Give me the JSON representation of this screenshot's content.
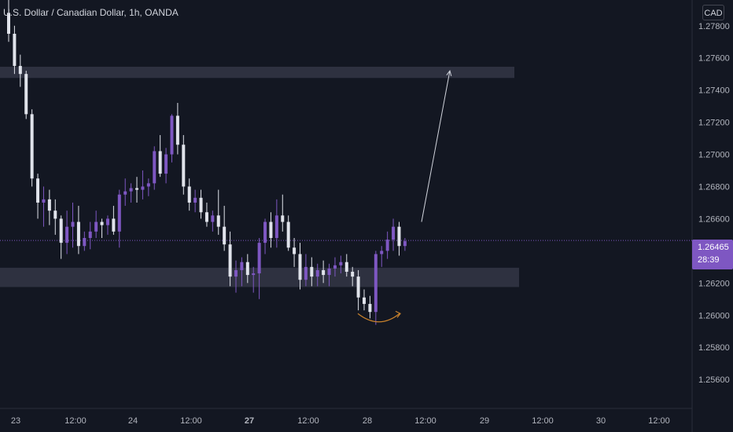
{
  "header": {
    "symbol_title": "U.S. Dollar / Canadian Dollar, 1h, OANDA",
    "currency": "CAD"
  },
  "last_price": {
    "value": "1.26465",
    "countdown": "28:39"
  },
  "colors": {
    "background": "#131722",
    "up": "#7e57c2",
    "down": "#e0e3eb",
    "zone": "#2e3140",
    "curve": "#c9822c",
    "arrow": "#d1d4dc"
  },
  "chart_data": {
    "type": "candlestick",
    "y_ticks": [
      "1.27800",
      "1.27600",
      "1.27400",
      "1.27200",
      "1.27000",
      "1.26800",
      "1.26600",
      "1.26200",
      "1.26000",
      "1.25800",
      "1.25600"
    ],
    "ylim": [
      1.2542,
      1.2796
    ],
    "x_ticks": [
      "23",
      "12:00",
      "24",
      "12:00",
      "27",
      "12:00",
      "28",
      "12:00",
      "29",
      "12:00",
      "30",
      "12:00"
    ],
    "zones": [
      {
        "from": 1.27545,
        "to": 1.27475
      },
      {
        "from": 1.26295,
        "to": 1.26175
      }
    ],
    "projection_arrow": {
      "from_price": 1.2658,
      "to_price": 1.2752
    },
    "candles": [
      [
        1.2788,
        1.28,
        1.277,
        1.2775
      ],
      [
        1.2775,
        1.278,
        1.275,
        1.2755
      ],
      [
        1.2755,
        1.2762,
        1.2742,
        1.275
      ],
      [
        1.275,
        1.2752,
        1.2722,
        1.2725
      ],
      [
        1.2725,
        1.2728,
        1.268,
        1.2685
      ],
      [
        1.2685,
        1.2688,
        1.266,
        1.267
      ],
      [
        1.267,
        1.268,
        1.2655,
        1.2672
      ],
      [
        1.2672,
        1.2678,
        1.2656,
        1.2665
      ],
      [
        1.2665,
        1.2672,
        1.265,
        1.266
      ],
      [
        1.266,
        1.2662,
        1.2635,
        1.2645
      ],
      [
        1.2645,
        1.2665,
        1.2638,
        1.2655
      ],
      [
        1.2655,
        1.267,
        1.2642,
        1.2658
      ],
      [
        1.2658,
        1.2668,
        1.2638,
        1.2643
      ],
      [
        1.2643,
        1.2652,
        1.264,
        1.2648
      ],
      [
        1.2648,
        1.2658,
        1.2641,
        1.2652
      ],
      [
        1.2652,
        1.2665,
        1.2648,
        1.2658
      ],
      [
        1.2658,
        1.266,
        1.2648,
        1.2656
      ],
      [
        1.2656,
        1.2662,
        1.265,
        1.266
      ],
      [
        1.266,
        1.2668,
        1.265,
        1.2652
      ],
      [
        1.2652,
        1.2678,
        1.2642,
        1.2675
      ],
      [
        1.2675,
        1.2685,
        1.2668,
        1.2677
      ],
      [
        1.2677,
        1.2682,
        1.267,
        1.2679
      ],
      [
        1.2679,
        1.2686,
        1.267,
        1.2678
      ],
      [
        1.2678,
        1.269,
        1.2672,
        1.268
      ],
      [
        1.268,
        1.2685,
        1.2674,
        1.2682
      ],
      [
        1.2682,
        1.2705,
        1.2678,
        1.2702
      ],
      [
        1.2702,
        1.2712,
        1.2686,
        1.2688
      ],
      [
        1.2688,
        1.2704,
        1.2682,
        1.27
      ],
      [
        1.27,
        1.2725,
        1.2695,
        1.2724
      ],
      [
        1.2724,
        1.2732,
        1.27,
        1.2706
      ],
      [
        1.2706,
        1.2712,
        1.2675,
        1.268
      ],
      [
        1.268,
        1.2685,
        1.2665,
        1.267
      ],
      [
        1.267,
        1.2678,
        1.2664,
        1.2673
      ],
      [
        1.2673,
        1.2678,
        1.266,
        1.2664
      ],
      [
        1.2664,
        1.267,
        1.2655,
        1.2658
      ],
      [
        1.2658,
        1.2665,
        1.2652,
        1.2662
      ],
      [
        1.2662,
        1.2678,
        1.265,
        1.2655
      ],
      [
        1.2655,
        1.2668,
        1.264,
        1.2644
      ],
      [
        1.2644,
        1.2652,
        1.2618,
        1.2624
      ],
      [
        1.2624,
        1.2634,
        1.2614,
        1.2628
      ],
      [
        1.2628,
        1.2636,
        1.2618,
        1.2633
      ],
      [
        1.2633,
        1.2638,
        1.262,
        1.2625
      ],
      [
        1.2625,
        1.263,
        1.2614,
        1.2626
      ],
      [
        1.2626,
        1.2648,
        1.261,
        1.2645
      ],
      [
        1.2645,
        1.266,
        1.2638,
        1.2658
      ],
      [
        1.2658,
        1.2664,
        1.2642,
        1.2648
      ],
      [
        1.2648,
        1.2672,
        1.2642,
        1.2662
      ],
      [
        1.2662,
        1.2675,
        1.2652,
        1.2658
      ],
      [
        1.2658,
        1.2662,
        1.264,
        1.2642
      ],
      [
        1.2642,
        1.2648,
        1.263,
        1.2638
      ],
      [
        1.2638,
        1.2645,
        1.2616,
        1.2622
      ],
      [
        1.2622,
        1.2638,
        1.2618,
        1.263
      ],
      [
        1.263,
        1.2636,
        1.2618,
        1.2624
      ],
      [
        1.2624,
        1.2632,
        1.2618,
        1.2628
      ],
      [
        1.2628,
        1.2634,
        1.262,
        1.2625
      ],
      [
        1.2625,
        1.2632,
        1.2618,
        1.2629
      ],
      [
        1.2629,
        1.2636,
        1.2624,
        1.2631
      ],
      [
        1.2631,
        1.2637,
        1.2626,
        1.2633
      ],
      [
        1.2633,
        1.2638,
        1.2624,
        1.2627
      ],
      [
        1.2627,
        1.263,
        1.2618,
        1.2624
      ],
      [
        1.2624,
        1.2628,
        1.2603,
        1.2611
      ],
      [
        1.2611,
        1.2616,
        1.2603,
        1.2607
      ],
      [
        1.2607,
        1.2612,
        1.2598,
        1.2602
      ],
      [
        1.2602,
        1.264,
        1.2594,
        1.2638
      ],
      [
        1.2638,
        1.2643,
        1.263,
        1.264
      ],
      [
        1.264,
        1.2652,
        1.2635,
        1.2647
      ],
      [
        1.2647,
        1.266,
        1.264,
        1.2655
      ],
      [
        1.2655,
        1.2658,
        1.2637,
        1.2643
      ],
      [
        1.2643,
        1.2648,
        1.264,
        1.2646
      ]
    ]
  }
}
